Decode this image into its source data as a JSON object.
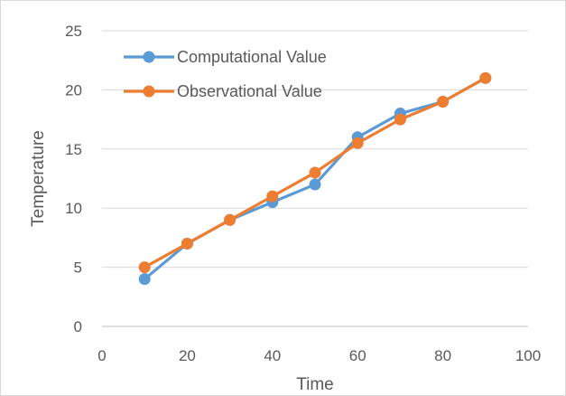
{
  "chart_data": {
    "type": "line",
    "title": "",
    "xlabel": "Time",
    "ylabel": "Temperature",
    "xlim": [
      0,
      100
    ],
    "ylim": [
      0,
      25
    ],
    "xticks": [
      0,
      20,
      40,
      60,
      80,
      100
    ],
    "yticks": [
      0,
      5,
      10,
      15,
      20,
      25
    ],
    "grid": "horizontal",
    "legend_position": "top-left",
    "series": [
      {
        "name": "Computational Value",
        "color": "#5B9BD5",
        "x": [
          10,
          20,
          30,
          40,
          50,
          60,
          70,
          80,
          90
        ],
        "y": [
          4,
          7,
          9,
          10.5,
          12,
          16,
          18,
          19,
          21
        ]
      },
      {
        "name": "Observational Value",
        "color": "#ED7D31",
        "x": [
          10,
          20,
          30,
          40,
          50,
          60,
          70,
          80,
          90
        ],
        "y": [
          5,
          7,
          9,
          11,
          13,
          15.5,
          17.5,
          19,
          21
        ]
      }
    ]
  }
}
